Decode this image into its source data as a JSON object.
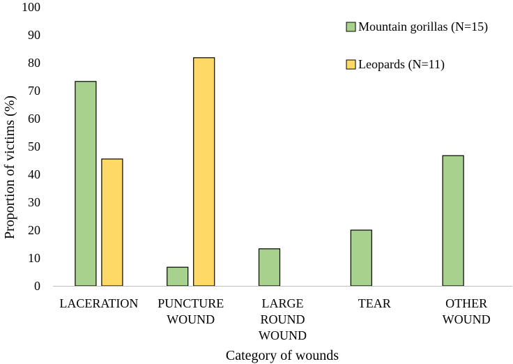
{
  "chart_data": {
    "type": "bar",
    "title": "",
    "xlabel": "Category of wounds",
    "ylabel": "Proportion of victims (%)",
    "ylim": [
      0,
      100
    ],
    "yticks": [
      0,
      10,
      20,
      30,
      40,
      50,
      60,
      70,
      80,
      90,
      100
    ],
    "grid": false,
    "legend_position": "top-right",
    "categories": [
      [
        "LACERATION"
      ],
      [
        "PUNCTURE",
        "WOUND"
      ],
      [
        "LARGE",
        "ROUND",
        "WOUND"
      ],
      [
        "TEAR"
      ],
      [
        "OTHER",
        "WOUND"
      ]
    ],
    "series": [
      {
        "name": "Mountain gorillas (N=15)",
        "color": "#a9d18e",
        "values": [
          73.3,
          6.7,
          13.3,
          20.0,
          46.7
        ]
      },
      {
        "name": "Leopards (N=11)",
        "color": "#ffd966",
        "values": [
          45.5,
          81.8,
          0,
          0,
          0
        ]
      }
    ]
  }
}
